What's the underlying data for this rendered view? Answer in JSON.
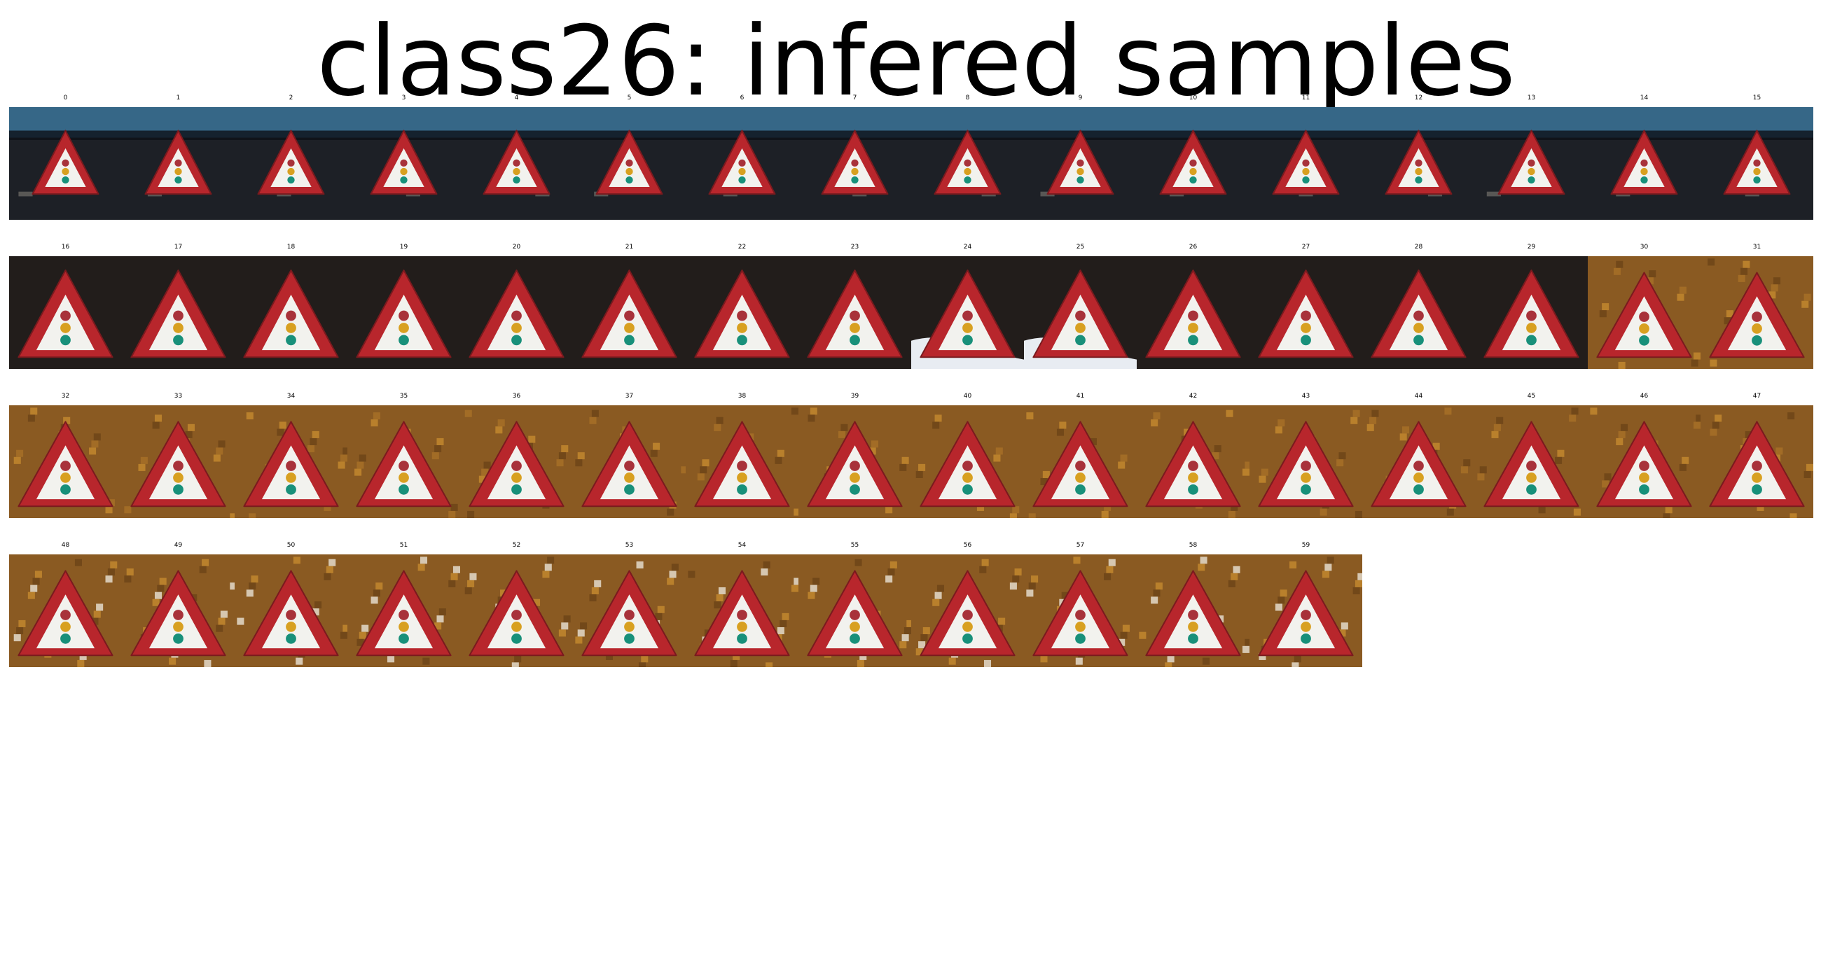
{
  "title": "class26: infered samples",
  "samples": [
    {
      "label": "0",
      "scene": "night"
    },
    {
      "label": "1",
      "scene": "night"
    },
    {
      "label": "2",
      "scene": "night"
    },
    {
      "label": "3",
      "scene": "night"
    },
    {
      "label": "4",
      "scene": "night"
    },
    {
      "label": "5",
      "scene": "night"
    },
    {
      "label": "6",
      "scene": "night"
    },
    {
      "label": "7",
      "scene": "night"
    },
    {
      "label": "8",
      "scene": "night"
    },
    {
      "label": "9",
      "scene": "night"
    },
    {
      "label": "10",
      "scene": "night"
    },
    {
      "label": "11",
      "scene": "night"
    },
    {
      "label": "12",
      "scene": "night"
    },
    {
      "label": "13",
      "scene": "night"
    },
    {
      "label": "14",
      "scene": "night"
    },
    {
      "label": "15",
      "scene": "night"
    },
    {
      "label": "16",
      "scene": "dark"
    },
    {
      "label": "17",
      "scene": "dark"
    },
    {
      "label": "18",
      "scene": "dark"
    },
    {
      "label": "19",
      "scene": "dark"
    },
    {
      "label": "20",
      "scene": "dark"
    },
    {
      "label": "21",
      "scene": "dark"
    },
    {
      "label": "22",
      "scene": "dark"
    },
    {
      "label": "23",
      "scene": "dark"
    },
    {
      "label": "24",
      "scene": "dark-white"
    },
    {
      "label": "25",
      "scene": "dark-white"
    },
    {
      "label": "26",
      "scene": "dark"
    },
    {
      "label": "27",
      "scene": "dark"
    },
    {
      "label": "28",
      "scene": "dark"
    },
    {
      "label": "29",
      "scene": "dark"
    },
    {
      "label": "30",
      "scene": "autumn"
    },
    {
      "label": "31",
      "scene": "autumn"
    },
    {
      "label": "32",
      "scene": "autumn"
    },
    {
      "label": "33",
      "scene": "autumn"
    },
    {
      "label": "34",
      "scene": "autumn"
    },
    {
      "label": "35",
      "scene": "autumn"
    },
    {
      "label": "36",
      "scene": "autumn"
    },
    {
      "label": "37",
      "scene": "autumn"
    },
    {
      "label": "38",
      "scene": "autumn"
    },
    {
      "label": "39",
      "scene": "autumn"
    },
    {
      "label": "40",
      "scene": "autumn"
    },
    {
      "label": "41",
      "scene": "autumn"
    },
    {
      "label": "42",
      "scene": "autumn"
    },
    {
      "label": "43",
      "scene": "autumn"
    },
    {
      "label": "44",
      "scene": "autumn"
    },
    {
      "label": "45",
      "scene": "autumn"
    },
    {
      "label": "46",
      "scene": "autumn"
    },
    {
      "label": "47",
      "scene": "autumn"
    },
    {
      "label": "48",
      "scene": "autumn-bright"
    },
    {
      "label": "49",
      "scene": "autumn-bright"
    },
    {
      "label": "50",
      "scene": "autumn-bright"
    },
    {
      "label": "51",
      "scene": "autumn-bright"
    },
    {
      "label": "52",
      "scene": "autumn-bright"
    },
    {
      "label": "53",
      "scene": "autumn-bright"
    },
    {
      "label": "54",
      "scene": "autumn-bright"
    },
    {
      "label": "55",
      "scene": "autumn-bright"
    },
    {
      "label": "56",
      "scene": "autumn-bright"
    },
    {
      "label": "57",
      "scene": "autumn-bright"
    },
    {
      "label": "58",
      "scene": "autumn-bright"
    },
    {
      "label": "59",
      "scene": "autumn-bright"
    }
  ],
  "colors": {
    "sign_border": "#b8262c",
    "sign_fill": "#f2f2ee",
    "light_red": "#a8323a",
    "light_amber": "#d8a020",
    "light_green": "#18907a",
    "night_bg": "#1d2026",
    "night_sky": "#3f7fa8",
    "dark_bg": "#221d1b",
    "autumn_bg": "#8a5a22",
    "autumn_hi": "#c48a30"
  }
}
